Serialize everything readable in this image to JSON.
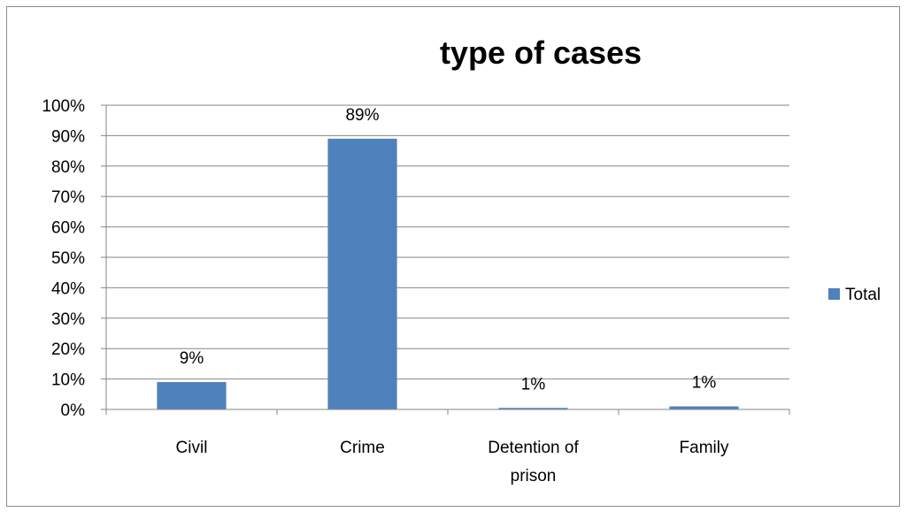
{
  "chart_data": {
    "type": "bar",
    "title": "type of cases",
    "categories": [
      "Civil",
      "Crime",
      "Detention of prison",
      "Family"
    ],
    "category_lines": [
      [
        "Civil"
      ],
      [
        "Crime"
      ],
      [
        "Detention of",
        "prison"
      ],
      [
        "Family"
      ]
    ],
    "series": [
      {
        "name": "Total",
        "values": [
          0.09,
          0.89,
          0.005,
          0.01
        ],
        "data_labels": [
          "9%",
          "89%",
          "1%",
          "1%"
        ],
        "color": "#4F81BD"
      }
    ],
    "ylim": [
      0,
      1
    ],
    "y_ticks": [
      "0%",
      "10%",
      "20%",
      "30%",
      "40%",
      "50%",
      "60%",
      "70%",
      "80%",
      "90%",
      "100%"
    ],
    "xlabel": "",
    "ylabel": "",
    "grid": true,
    "legend_position": "right"
  },
  "colors": {
    "gridline": "#868686",
    "axis": "#868686",
    "bar": "#4F81BD"
  }
}
